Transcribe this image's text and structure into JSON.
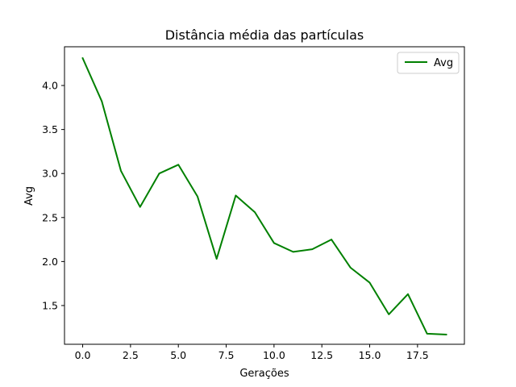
{
  "chart_data": {
    "type": "line",
    "title": "Distância média das partículas",
    "xlabel": "Gerações",
    "ylabel": "Avg",
    "xlim": [
      -0.95,
      19.95
    ],
    "ylim": [
      1.06,
      4.44
    ],
    "xticks": [
      0,
      2.5,
      5,
      7.5,
      10,
      12.5,
      15,
      17.5
    ],
    "xtick_labels": [
      "0.0",
      "2.5",
      "5.0",
      "7.5",
      "10.0",
      "12.5",
      "15.0",
      "17.5"
    ],
    "yticks": [
      1.5,
      2.0,
      2.5,
      3.0,
      3.5,
      4.0
    ],
    "ytick_labels": [
      "1.5",
      "2.0",
      "2.5",
      "3.0",
      "3.5",
      "4.0"
    ],
    "grid": false,
    "legend_position": "top-right",
    "series": [
      {
        "name": "Avg",
        "color": "#008000",
        "x": [
          0,
          1,
          2,
          3,
          4,
          5,
          6,
          7,
          8,
          9,
          10,
          11,
          12,
          13,
          14,
          15,
          16,
          17,
          18,
          19
        ],
        "y": [
          4.31,
          3.82,
          3.03,
          2.62,
          3.0,
          3.1,
          2.74,
          2.03,
          2.75,
          2.56,
          2.21,
          2.11,
          2.14,
          2.25,
          1.93,
          1.76,
          1.4,
          1.63,
          1.18,
          1.17
        ]
      }
    ]
  }
}
